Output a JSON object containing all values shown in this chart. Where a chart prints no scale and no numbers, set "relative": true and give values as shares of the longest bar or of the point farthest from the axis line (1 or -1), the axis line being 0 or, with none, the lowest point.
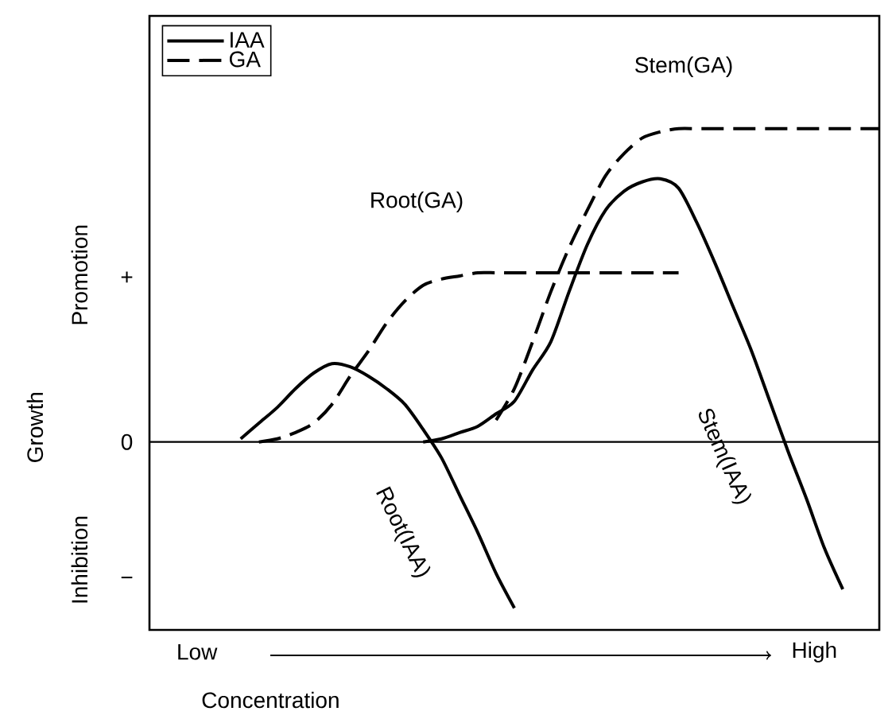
{
  "chart_data": {
    "type": "line",
    "relative": true,
    "ylabel": "Growth",
    "xlabel": "Concentration",
    "categories": [
      null,
      null,
      null,
      null,
      null,
      null,
      null,
      null,
      null,
      null,
      null,
      null,
      null,
      null,
      null,
      null,
      null,
      null,
      null,
      null,
      null,
      null,
      null,
      null,
      null,
      null,
      null,
      null,
      null,
      null,
      null,
      null,
      null,
      null,
      null,
      null,
      null,
      null,
      null,
      null,
      null
    ],
    "legend": "top left",
    "series": [
      {
        "name": "IAA",
        "color": "#000000",
        "line_style": "solid",
        "values": [
          null,
          null,
          null,
          null,
          null,
          0.01,
          0.06,
          0.11,
          0.17,
          0.22,
          0.25,
          0.24,
          0.21,
          0.17,
          0.12,
          0.04,
          -0.05,
          -0.17,
          -0.29,
          -0.42,
          -0.53,
          null,
          null,
          null,
          null,
          null,
          null,
          null,
          null,
          null,
          null,
          null,
          null,
          null,
          null,
          null,
          null,
          null,
          null,
          null,
          null
        ]
      },
      {
        "name": "GA",
        "color": "#000000",
        "line_style": "dashed",
        "values": [
          null,
          null,
          null,
          null,
          null,
          null,
          0,
          0.01,
          0.03,
          0.06,
          0.12,
          0.21,
          0.29,
          0.38,
          0.45,
          0.5,
          0.52,
          0.53,
          0.54,
          0.54,
          0.54,
          0.54,
          0.54,
          0.54,
          0.54,
          0.54,
          0.54,
          0.54,
          0.54,
          0.54,
          null,
          null,
          null,
          null,
          null,
          null,
          null,
          null,
          null,
          null,
          null
        ]
      },
      {
        "color": "#000000",
        "line_style": "solid",
        "values": [
          null,
          null,
          null,
          null,
          null,
          null,
          null,
          null,
          null,
          null,
          null,
          null,
          null,
          null,
          null,
          0,
          0.01,
          0.03,
          0.05,
          0.09,
          0.13,
          0.23,
          0.32,
          0.48,
          0.63,
          0.74,
          0.8,
          0.83,
          0.84,
          0.81,
          0.7,
          0.57,
          0.43,
          0.29,
          0.13,
          -0.03,
          -0.18,
          -0.34,
          -0.47,
          null,
          null
        ]
      },
      {
        "color": "#000000",
        "line_style": "dashed",
        "values": [
          null,
          null,
          null,
          null,
          null,
          null,
          null,
          null,
          null,
          null,
          null,
          null,
          null,
          null,
          null,
          null,
          null,
          null,
          null,
          0.07,
          0.17,
          0.32,
          0.48,
          0.62,
          0.74,
          0.85,
          0.92,
          0.97,
          0.99,
          1,
          1,
          1,
          1,
          1,
          1,
          1,
          1,
          1,
          1,
          1,
          1
        ]
      }
    ],
    "annotations": [
      "+",
      "0",
      "−",
      "Low",
      "High",
      "Root(GA)",
      "Stem(GA)",
      "Root(IAA)",
      "Stem(IAA)",
      "Promotion",
      "Inhibition"
    ]
  }
}
